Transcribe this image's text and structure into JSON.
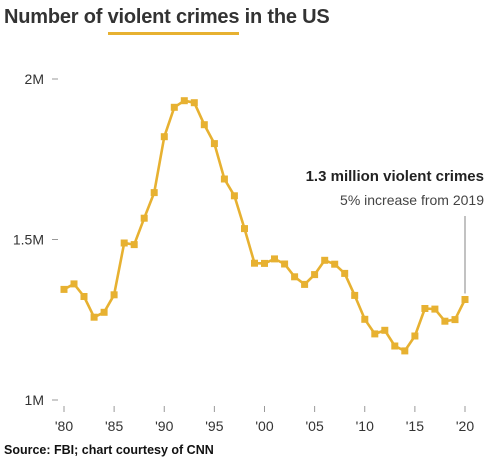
{
  "title": {
    "prefix": "Number of ",
    "highlight": "violent crimes",
    "suffix": " in the US"
  },
  "annotation": {
    "title": "1.3 million violent crimes",
    "subtitle": "5% increase from 2019"
  },
  "source": "Source: FBI; chart courtesy of CNN",
  "colors": {
    "line": "#e7b131",
    "text": "#333333",
    "tick": "#999999"
  },
  "chart_data": {
    "type": "line",
    "title": "Number of violent crimes in the US",
    "xlabel": "",
    "ylabel": "",
    "x": [
      1980,
      1981,
      1982,
      1983,
      1984,
      1985,
      1986,
      1987,
      1988,
      1989,
      1990,
      1991,
      1992,
      1993,
      1994,
      1995,
      1996,
      1997,
      1998,
      1999,
      2000,
      2001,
      2002,
      2003,
      2004,
      2005,
      2006,
      2007,
      2008,
      2009,
      2010,
      2011,
      2012,
      2013,
      2014,
      2015,
      2016,
      2017,
      2018,
      2019,
      2020
    ],
    "series": [
      {
        "values": [
          1344520,
          1361820,
          1322390,
          1258090,
          1273280,
          1327770,
          1489170,
          1484000,
          1566220,
          1646040,
          1820130,
          1911770,
          1932270,
          1926020,
          1857670,
          1798790,
          1688540,
          1636100,
          1533890,
          1426040,
          1425490,
          1439480,
          1423680,
          1383680,
          1360090,
          1390750,
          1435120,
          1422970,
          1394460,
          1325900,
          1251250,
          1206010,
          1217070,
          1168300,
          1153020,
          1199310,
          1285110,
          1283220,
          1245410,
          1250390,
          1313110
        ]
      }
    ],
    "ylim": [
      1000000,
      2000000
    ],
    "y_ticks": [
      {
        "value": 1000000,
        "label": "1M"
      },
      {
        "value": 1500000,
        "label": "1.5M"
      },
      {
        "value": 2000000,
        "label": "2M"
      }
    ],
    "x_ticks": [
      {
        "value": 1980,
        "label": "'80"
      },
      {
        "value": 1985,
        "label": "'85"
      },
      {
        "value": 1990,
        "label": "'90"
      },
      {
        "value": 1995,
        "label": "'95"
      },
      {
        "value": 2000,
        "label": "'00"
      },
      {
        "value": 2005,
        "label": "'05"
      },
      {
        "value": 2010,
        "label": "'10"
      },
      {
        "value": 2015,
        "label": "'15"
      },
      {
        "value": 2020,
        "label": "'20"
      }
    ],
    "grid": false,
    "legend": "none",
    "annotated_point": {
      "x": 2020,
      "y": 1313110
    }
  }
}
